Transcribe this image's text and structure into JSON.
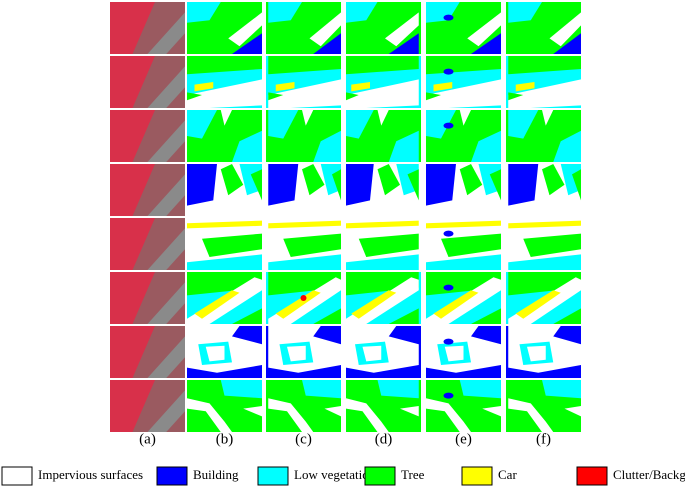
{
  "columns": [
    "(a)",
    "(b)",
    "(c)",
    "(d)",
    "(e)",
    "(f)"
  ],
  "legend": [
    {
      "label": "Impervious surfaces",
      "color": "#ffffff"
    },
    {
      "label": "Building",
      "color": "#0000ff"
    },
    {
      "label": "Low vegetation",
      "color": "#00ffff"
    },
    {
      "label": "Tree",
      "color": "#00ff00"
    },
    {
      "label": "Car",
      "color": "#ffff00"
    },
    {
      "label": "Clutter/Background",
      "color": "#ff0000"
    }
  ]
}
